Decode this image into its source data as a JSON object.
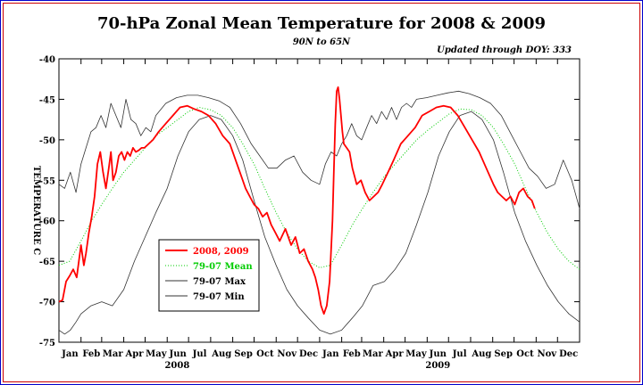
{
  "chart_data": {
    "type": "line",
    "title": "70-hPa Zonal Mean Temperature for 2008 & 2009",
    "subtitle": "90N to 65N",
    "updated": "Updated through DOY: 333",
    "ylabel": "TEMPERATURE C",
    "ylim": [
      -75,
      -40
    ],
    "yticks": [
      -40,
      -45,
      -50,
      -55,
      -60,
      -65,
      -70,
      -75
    ],
    "xlim": [
      0,
      731
    ],
    "months": [
      "Jan",
      "Feb",
      "Mar",
      "Apr",
      "May",
      "Jun",
      "Jul",
      "Aug",
      "Sep",
      "Oct",
      "Nov",
      "Dec",
      "Jan",
      "Feb",
      "Mar",
      "Apr",
      "May",
      "Jun",
      "Jul",
      "Aug",
      "Sep",
      "Oct",
      "Nov",
      "Dec"
    ],
    "years": [
      {
        "label": "2008",
        "day": 166
      },
      {
        "label": "2009",
        "day": 532
      }
    ],
    "colors": {
      "observed": "#ff0000",
      "mean": "#00cc00",
      "extremes": "#333333",
      "frame": "#0000cc",
      "frame_inner": "#cc0000"
    },
    "series": [
      {
        "name": "2008, 2009",
        "style": "solid-thick",
        "x": [
          0,
          5,
          10,
          15,
          20,
          25,
          28,
          31,
          35,
          38,
          42,
          46,
          50,
          54,
          58,
          62,
          66,
          70,
          73,
          76,
          80,
          84,
          88,
          92,
          96,
          100,
          104,
          108,
          112,
          116,
          120,
          126,
          132,
          140,
          150,
          160,
          170,
          180,
          190,
          200,
          210,
          220,
          230,
          240,
          248,
          256,
          262,
          268,
          274,
          280,
          286,
          292,
          298,
          304,
          310,
          318,
          326,
          332,
          338,
          344,
          350,
          356,
          360,
          364,
          368,
          372,
          376,
          380,
          384,
          386,
          388,
          390,
          392,
          394,
          396,
          398,
          400,
          404,
          408,
          412,
          418,
          424,
          430,
          436,
          442,
          448,
          454,
          462,
          470,
          480,
          490,
          500,
          510,
          520,
          530,
          540,
          550,
          560,
          570,
          580,
          590,
          600,
          610,
          616,
          622,
          628,
          634,
          640,
          646,
          652,
          658,
          664,
          668
        ],
        "values": [
          -70.0,
          -69.8,
          -67.5,
          -66.8,
          -66.0,
          -67.0,
          -65.0,
          -63.0,
          -65.5,
          -64.0,
          -61.5,
          -59.5,
          -57.0,
          -53.0,
          -51.5,
          -54.0,
          -56.0,
          -53.5,
          -51.5,
          -55.0,
          -54.0,
          -52.0,
          -51.5,
          -52.5,
          -51.5,
          -52.0,
          -51.0,
          -51.5,
          -51.3,
          -51.0,
          -51.0,
          -50.5,
          -50.0,
          -49.0,
          -48.0,
          -47.0,
          -46.0,
          -45.8,
          -46.2,
          -46.5,
          -47.0,
          -48.0,
          -49.5,
          -50.5,
          -52.5,
          -54.5,
          -56.0,
          -57.0,
          -58.0,
          -58.5,
          -59.5,
          -59.0,
          -60.5,
          -61.5,
          -62.5,
          -61.0,
          -63.0,
          -62.0,
          -64.0,
          -63.5,
          -65.0,
          -66.0,
          -67.0,
          -68.5,
          -70.5,
          -71.5,
          -70.5,
          -67.5,
          -60.0,
          -54.0,
          -48.0,
          -44.0,
          -43.5,
          -45.0,
          -47.0,
          -49.0,
          -50.5,
          -51.0,
          -51.5,
          -53.5,
          -55.5,
          -55.0,
          -56.5,
          -57.5,
          -57.0,
          -56.5,
          -55.5,
          -54.0,
          -52.5,
          -50.5,
          -49.5,
          -48.5,
          -47.0,
          -46.5,
          -46.0,
          -45.8,
          -46.0,
          -47.0,
          -48.5,
          -50.0,
          -51.5,
          -53.5,
          -55.5,
          -56.5,
          -57.0,
          -57.5,
          -57.0,
          -58.0,
          -56.5,
          -56.0,
          -57.0,
          -57.5,
          -58.5
        ]
      },
      {
        "name": "79-07 Mean",
        "style": "dotted",
        "x": [
          0,
          15,
          31,
          46,
          60,
          75,
          91,
          106,
          121,
          136,
          152,
          167,
          182,
          197,
          213,
          228,
          244,
          258,
          274,
          289,
          305,
          320,
          335,
          350,
          366,
          381,
          397,
          412,
          426,
          441,
          457,
          472,
          487,
          502,
          518,
          533,
          548,
          563,
          579,
          594,
          610,
          624,
          640,
          655,
          671,
          686,
          701,
          716,
          731
        ],
        "values": [
          -65.5,
          -65.0,
          -62.5,
          -60.0,
          -58.0,
          -56.0,
          -54.0,
          -52.5,
          -51.0,
          -49.5,
          -48.5,
          -47.5,
          -46.5,
          -46.0,
          -46.3,
          -47.0,
          -48.5,
          -50.5,
          -53.0,
          -56.0,
          -59.0,
          -61.5,
          -63.5,
          -65.0,
          -65.8,
          -65.5,
          -63.0,
          -60.5,
          -58.5,
          -56.5,
          -54.5,
          -53.0,
          -51.5,
          -50.0,
          -48.8,
          -47.8,
          -46.8,
          -46.2,
          -46.3,
          -47.0,
          -48.5,
          -50.5,
          -53.0,
          -56.0,
          -59.0,
          -61.5,
          -63.5,
          -65.0,
          -66.0
        ]
      },
      {
        "name": "79-07 Max",
        "style": "solid-thin",
        "x": [
          0,
          8,
          16,
          24,
          31,
          38,
          45,
          52,
          59,
          66,
          73,
          80,
          87,
          94,
          101,
          108,
          115,
          122,
          129,
          136,
          150,
          165,
          180,
          195,
          210,
          225,
          240,
          255,
          270,
          282,
          294,
          306,
          318,
          330,
          342,
          354,
          366,
          374,
          382,
          390,
          397,
          404,
          411,
          418,
          425,
          432,
          439,
          446,
          453,
          460,
          467,
          474,
          481,
          488,
          495,
          502,
          516,
          531,
          546,
          561,
          576,
          591,
          606,
          621,
          636,
          648,
          660,
          672,
          684,
          696,
          708,
          720,
          731
        ],
        "values": [
          -55.5,
          -56.0,
          -54.0,
          -56.5,
          -53.0,
          -51.0,
          -49.0,
          -48.5,
          -47.0,
          -48.5,
          -45.5,
          -47.0,
          -48.5,
          -45.0,
          -47.5,
          -48.0,
          -49.5,
          -48.5,
          -49.0,
          -47.0,
          -45.5,
          -44.8,
          -44.5,
          -44.5,
          -44.8,
          -45.2,
          -46.0,
          -48.0,
          -50.5,
          -52.0,
          -53.5,
          -53.5,
          -52.5,
          -52.0,
          -54.0,
          -55.0,
          -55.5,
          -53.0,
          -51.5,
          -52.0,
          -50.5,
          -49.5,
          -48.0,
          -49.5,
          -50.0,
          -48.5,
          -47.0,
          -48.0,
          -46.5,
          -47.5,
          -46.0,
          -47.5,
          -46.0,
          -45.5,
          -46.0,
          -45.0,
          -44.8,
          -44.5,
          -44.2,
          -44.0,
          -44.3,
          -44.8,
          -45.5,
          -47.0,
          -49.5,
          -51.5,
          -53.5,
          -54.5,
          -56.0,
          -55.5,
          -52.5,
          -55.0,
          -58.5
        ]
      },
      {
        "name": "79-07 Min",
        "style": "solid-thin",
        "x": [
          0,
          8,
          16,
          24,
          31,
          45,
          60,
          75,
          91,
          106,
          121,
          136,
          152,
          167,
          182,
          197,
          213,
          228,
          244,
          258,
          274,
          289,
          305,
          320,
          335,
          350,
          366,
          381,
          397,
          412,
          426,
          441,
          457,
          472,
          487,
          502,
          518,
          533,
          548,
          563,
          579,
          594,
          610,
          624,
          640,
          655,
          671,
          686,
          701,
          716,
          731
        ],
        "values": [
          -73.5,
          -74.0,
          -73.5,
          -72.5,
          -71.5,
          -70.5,
          -70.0,
          -70.5,
          -68.5,
          -65.0,
          -62.0,
          -59.0,
          -56.0,
          -52.0,
          -49.0,
          -47.5,
          -47.0,
          -47.5,
          -49.5,
          -52.5,
          -57.5,
          -62.0,
          -65.5,
          -68.5,
          -70.5,
          -72.0,
          -73.5,
          -74.0,
          -73.5,
          -72.0,
          -70.5,
          -68.0,
          -67.5,
          -66.0,
          -64.0,
          -60.5,
          -56.5,
          -52.0,
          -49.0,
          -47.0,
          -46.5,
          -47.5,
          -50.0,
          -54.0,
          -59.0,
          -62.5,
          -65.5,
          -68.0,
          -70.0,
          -71.5,
          -72.5
        ]
      }
    ]
  }
}
